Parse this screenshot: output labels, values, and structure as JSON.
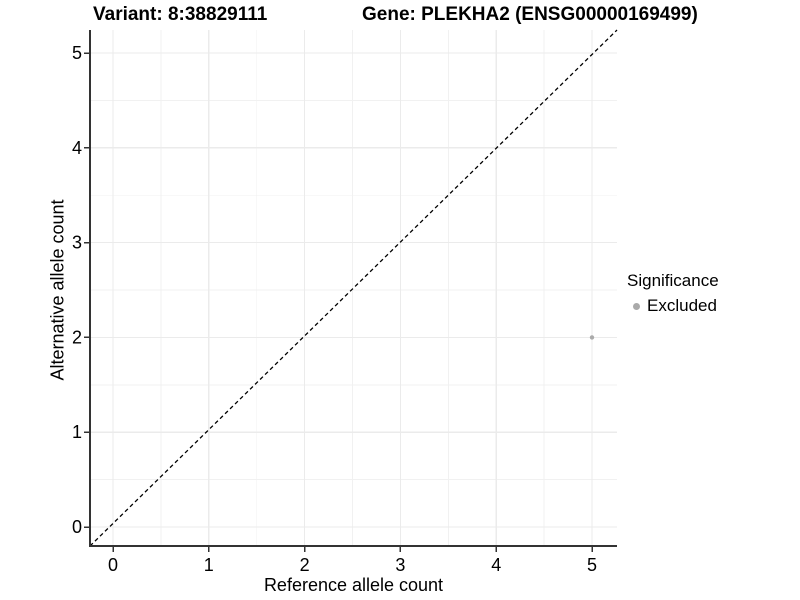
{
  "header": {
    "variant_title": "Variant: 8:38829111",
    "gene_title": "Gene: PLEKHA2 (ENSG00000169499)"
  },
  "chart_data": {
    "type": "scatter",
    "xlabel": "Reference allele count",
    "ylabel": "Alternative allele count",
    "xlim": [
      0,
      5
    ],
    "ylim": [
      0,
      5
    ],
    "x_ticks": [
      0,
      1,
      2,
      3,
      4,
      5
    ],
    "y_ticks": [
      0,
      1,
      2,
      3,
      4,
      5
    ],
    "minor_grid_step": 0.5,
    "grid": "major+minor",
    "points": [
      {
        "x": 5,
        "y": 2,
        "significance": "Excluded"
      }
    ],
    "reference_line": {
      "equation": "y = x",
      "style": "dashed",
      "color": "#000000"
    },
    "legend": {
      "title": "Significance",
      "position": "right",
      "entries": [
        {
          "label": "Excluded",
          "marker": "circle",
          "color": "#aaaaaa"
        }
      ]
    },
    "colors": {
      "point": "#aaaaaa",
      "grid_major": "#ebebeb",
      "grid_minor": "#f1f1f1",
      "axis": "#333333",
      "tick_text": "#000000",
      "background": "#ffffff"
    }
  }
}
